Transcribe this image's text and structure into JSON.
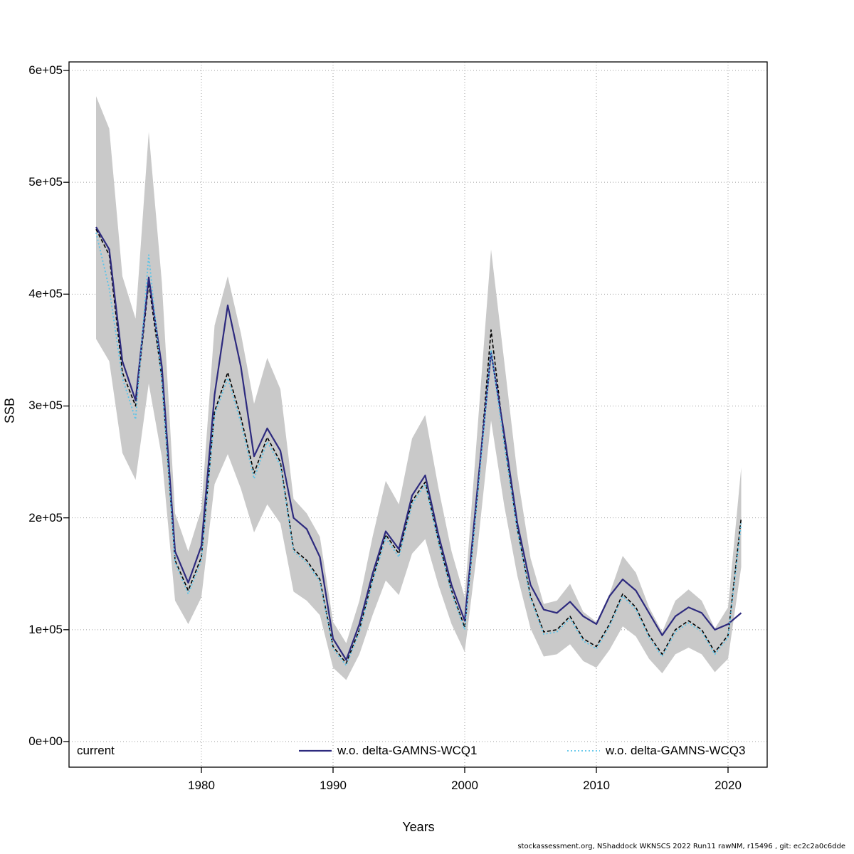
{
  "footer": {
    "text": "stockassessment.org, NShaddock WKNSCS 2022 Run11 rawNM, r15496 , git: ec2c2a0c6dde"
  },
  "chart_data": {
    "type": "line",
    "xlabel": "Years",
    "ylabel": "SSB",
    "xlim": [
      1970,
      2023
    ],
    "ylim": [
      0,
      608000
    ],
    "grid": true,
    "grid_color": "#9e9e9e",
    "frame_color": "#000000",
    "legend_position": "bottom-inside",
    "x": [
      1972,
      1973,
      1974,
      1975,
      1976,
      1977,
      1978,
      1979,
      1980,
      1981,
      1982,
      1983,
      1984,
      1985,
      1986,
      1987,
      1988,
      1989,
      1990,
      1991,
      1992,
      1993,
      1994,
      1995,
      1996,
      1997,
      1998,
      1999,
      2000,
      2001,
      2002,
      2003,
      2004,
      2005,
      2006,
      2007,
      2008,
      2009,
      2010,
      2011,
      2012,
      2013,
      2014,
      2015,
      2016,
      2017,
      2018,
      2019,
      2020,
      2021
    ],
    "xticks": {
      "values": [
        1980,
        1990,
        2000,
        2010,
        2020
      ],
      "labels": [
        "1980",
        "1990",
        "2000",
        "2010",
        "2020"
      ]
    },
    "yticks": {
      "values": [
        0,
        100000,
        200000,
        300000,
        400000,
        500000,
        600000
      ],
      "labels": [
        "0e+00",
        "1e+05",
        "2e+05",
        "3e+05",
        "4e+05",
        "5e+05",
        "6e+05"
      ]
    },
    "series": [
      {
        "name": "current",
        "color": "#000000",
        "style": "dashed",
        "width": 1.6,
        "values": [
          458000,
          435000,
          330000,
          300000,
          410000,
          325000,
          162000,
          135000,
          165000,
          295000,
          330000,
          290000,
          240000,
          272000,
          250000,
          172000,
          162000,
          145000,
          85000,
          70000,
          100000,
          145000,
          185000,
          168000,
          215000,
          232000,
          180000,
          135000,
          102000,
          225000,
          368000,
          270000,
          190000,
          130000,
          98000,
          100000,
          112000,
          92000,
          85000,
          105000,
          132000,
          120000,
          95000,
          78000,
          100000,
          108000,
          100000,
          80000,
          95000,
          200000
        ]
      },
      {
        "name": "w.o. delta-GAMNS-WCQ1",
        "color": "#2d2a7e",
        "style": "solid",
        "width": 2.2,
        "values": [
          460000,
          440000,
          340000,
          305000,
          415000,
          335000,
          170000,
          142000,
          175000,
          310000,
          390000,
          335000,
          255000,
          280000,
          260000,
          200000,
          190000,
          165000,
          92000,
          73000,
          105000,
          150000,
          188000,
          172000,
          220000,
          238000,
          185000,
          140000,
          108000,
          230000,
          348000,
          275000,
          195000,
          140000,
          118000,
          115000,
          125000,
          112000,
          105000,
          130000,
          145000,
          135000,
          115000,
          95000,
          112000,
          120000,
          115000,
          100000,
          105000,
          115000
        ]
      },
      {
        "name": "w.o. delta-GAMNS-WCQ3",
        "color": "#58c4e9",
        "style": "dotted",
        "width": 1.8,
        "values": [
          455000,
          405000,
          325000,
          288000,
          435000,
          320000,
          160000,
          132000,
          162000,
          292000,
          325000,
          285000,
          235000,
          268000,
          247000,
          170000,
          160000,
          143000,
          83000,
          68000,
          98000,
          143000,
          182000,
          165000,
          212000,
          230000,
          178000,
          133000,
          100000,
          222000,
          350000,
          265000,
          188000,
          128000,
          96000,
          98000,
          110000,
          90000,
          83000,
          103000,
          130000,
          118000,
          93000,
          76000,
          98000,
          106000,
          98000,
          78000,
          93000,
          195000
        ]
      }
    ],
    "band": {
      "series": "current",
      "color": "#c9c9c9",
      "lower": [
        360000,
        340000,
        258000,
        234000,
        320000,
        254000,
        126000,
        105000,
        129000,
        230000,
        257000,
        226000,
        187000,
        212000,
        195000,
        134000,
        126000,
        113000,
        66000,
        55000,
        78000,
        113000,
        144000,
        131000,
        168000,
        181000,
        140000,
        105000,
        80000,
        176000,
        287000,
        211000,
        148000,
        101000,
        76000,
        78000,
        87000,
        72000,
        66000,
        82000,
        103000,
        94000,
        74000,
        61000,
        78000,
        84000,
        78000,
        62000,
        74000,
        156000
      ],
      "upper": [
        577000,
        548000,
        416000,
        378000,
        545000,
        410000,
        204000,
        170000,
        208000,
        372000,
        416000,
        365000,
        302000,
        343000,
        315000,
        217000,
        204000,
        183000,
        107000,
        88000,
        126000,
        183000,
        233000,
        212000,
        271000,
        292000,
        227000,
        170000,
        129000,
        284000,
        440000,
        340000,
        239000,
        164000,
        123000,
        126000,
        141000,
        116000,
        107000,
        132000,
        166000,
        151000,
        120000,
        98000,
        126000,
        136000,
        126000,
        101000,
        120000,
        245000
      ]
    }
  }
}
